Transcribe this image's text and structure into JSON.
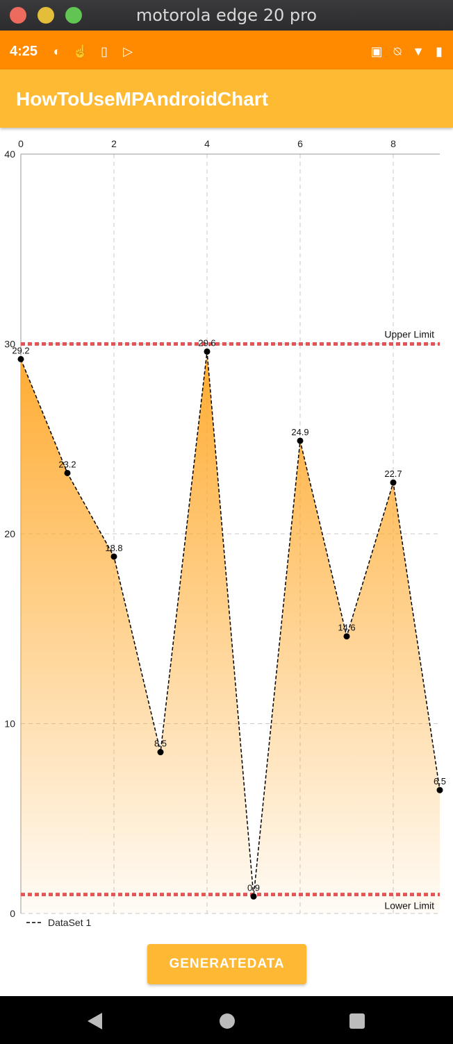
{
  "window": {
    "title": "motorola edge 20 pro"
  },
  "status_bar": {
    "time": "4:25",
    "left_icons": [
      "circle-half-icon",
      "touch-icon",
      "sim-icon",
      "play-store-icon"
    ],
    "right_icons": [
      "nfc-icon",
      "mute-icon",
      "wifi-icon",
      "battery-icon"
    ]
  },
  "app_bar": {
    "title": "HowToUseMPAndroidChart"
  },
  "chart_data": {
    "type": "line",
    "x": [
      0,
      1,
      2,
      3,
      4,
      5,
      6,
      7,
      8,
      9
    ],
    "x_tick_labels": [
      "0",
      "2",
      "4",
      "6",
      "8"
    ],
    "y_tick_labels": [
      "0",
      "10",
      "20",
      "30",
      "40"
    ],
    "xlim": [
      0,
      9
    ],
    "ylim": [
      0,
      40
    ],
    "x_axis_position": "top",
    "grid": true,
    "fill": true,
    "series": [
      {
        "name": "DataSet 1",
        "values": [
          29.2,
          23.2,
          18.8,
          8.5,
          29.6,
          0.9,
          24.9,
          14.6,
          22.7,
          6.5
        ],
        "labels": [
          "29.2",
          "23.2",
          "18.8",
          "8.5",
          "29.6",
          "0.9",
          "24.9",
          "14.6",
          "22.7",
          "6.5"
        ],
        "line_color": "#000000",
        "fill_color": "#ffa726"
      }
    ],
    "limit_lines": [
      {
        "label": "Upper Limit",
        "value": 30,
        "color": "#e05555"
      },
      {
        "label": "Lower Limit",
        "value": 1,
        "color": "#e05555"
      }
    ],
    "legend": {
      "position": "bottom-left",
      "entries": [
        "DataSet 1"
      ]
    }
  },
  "button": {
    "label": "GENERATEDATA"
  },
  "nav_bar": {
    "buttons": [
      "back-icon",
      "home-icon",
      "recents-icon"
    ]
  }
}
